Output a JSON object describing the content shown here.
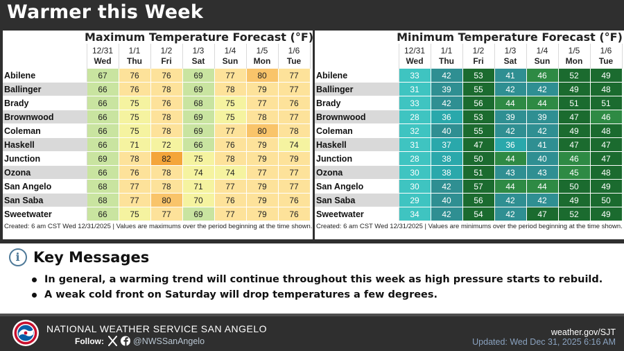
{
  "header": {
    "title": "Warmer this Week"
  },
  "columns": [
    {
      "date": "12/31",
      "day": "Wed"
    },
    {
      "date": "1/1",
      "day": "Thu"
    },
    {
      "date": "1/2",
      "day": "Fri"
    },
    {
      "date": "1/3",
      "day": "Sat"
    },
    {
      "date": "1/4",
      "day": "Sun"
    },
    {
      "date": "1/5",
      "day": "Mon"
    },
    {
      "date": "1/6",
      "day": "Tue"
    }
  ],
  "max_table": {
    "title": "Maximum Temperature Forecast (°F)",
    "footnote": "Created: 6 am CST Wed 12/31/2025  |  Values are maximums over the period beginning at the time shown.",
    "rows": [
      {
        "city": "Abilene",
        "values": [
          67,
          76,
          76,
          69,
          77,
          80,
          77
        ]
      },
      {
        "city": "Ballinger",
        "values": [
          66,
          76,
          78,
          69,
          78,
          79,
          77
        ]
      },
      {
        "city": "Brady",
        "values": [
          66,
          75,
          76,
          68,
          75,
          77,
          76
        ]
      },
      {
        "city": "Brownwood",
        "values": [
          66,
          75,
          78,
          69,
          75,
          78,
          77
        ]
      },
      {
        "city": "Coleman",
        "values": [
          66,
          75,
          78,
          69,
          77,
          80,
          78
        ]
      },
      {
        "city": "Haskell",
        "values": [
          66,
          71,
          72,
          66,
          76,
          79,
          74
        ]
      },
      {
        "city": "Junction",
        "values": [
          69,
          78,
          82,
          75,
          78,
          79,
          79
        ]
      },
      {
        "city": "Ozona",
        "values": [
          66,
          76,
          78,
          74,
          74,
          77,
          77
        ]
      },
      {
        "city": "San Angelo",
        "values": [
          68,
          77,
          78,
          71,
          77,
          79,
          77
        ]
      },
      {
        "city": "San Saba",
        "values": [
          68,
          77,
          80,
          70,
          76,
          79,
          76
        ]
      },
      {
        "city": "Sweetwater",
        "values": [
          66,
          75,
          77,
          69,
          77,
          79,
          76
        ]
      }
    ]
  },
  "min_table": {
    "title": "Minimum Temperature Forecast (°F)",
    "footnote": "Created: 6 am CST Wed 12/31/2025  |  Values are minimums over the period beginning at the time shown.",
    "rows": [
      {
        "city": "Abilene",
        "values": [
          33,
          42,
          53,
          41,
          46,
          52,
          49
        ]
      },
      {
        "city": "Ballinger",
        "values": [
          31,
          39,
          55,
          42,
          42,
          49,
          48
        ]
      },
      {
        "city": "Brady",
        "values": [
          33,
          42,
          56,
          44,
          44,
          51,
          51
        ]
      },
      {
        "city": "Brownwood",
        "values": [
          28,
          36,
          53,
          39,
          39,
          47,
          46
        ]
      },
      {
        "city": "Coleman",
        "values": [
          32,
          40,
          55,
          42,
          42,
          49,
          48
        ]
      },
      {
        "city": "Haskell",
        "values": [
          31,
          37,
          47,
          36,
          41,
          47,
          47
        ]
      },
      {
        "city": "Junction",
        "values": [
          28,
          38,
          50,
          44,
          40,
          46,
          47
        ]
      },
      {
        "city": "Ozona",
        "values": [
          30,
          38,
          51,
          43,
          43,
          45,
          48
        ]
      },
      {
        "city": "San Angelo",
        "values": [
          30,
          42,
          57,
          44,
          44,
          50,
          49
        ]
      },
      {
        "city": "San Saba",
        "values": [
          29,
          40,
          56,
          42,
          42,
          49,
          50
        ]
      },
      {
        "city": "Sweetwater",
        "values": [
          34,
          42,
          54,
          42,
          47,
          52,
          49
        ]
      }
    ]
  },
  "key_messages": {
    "icon": "info-icon",
    "title": "Key Messages",
    "items": [
      "In general, a warming trend will continue throughout this week as high pressure starts to rebuild.",
      "A weak cold front on Saturday will drop temperatures a few degrees."
    ]
  },
  "footer": {
    "office": "NATIONAL WEATHER SERVICE SAN ANGELO",
    "follow_label": "Follow:",
    "social_icons": [
      "x-icon",
      "facebook-icon"
    ],
    "handle": "@NWSSanAngelo",
    "website": "weather.gov/SJT",
    "updated": "Updated: Wed Dec 31, 2025 6:16 AM"
  },
  "colors": {
    "background_dark": "#2f2f2f",
    "max_scale": [
      "#c9e4a0",
      "#f5f3a0",
      "#fde29a",
      "#f9c46a",
      "#f4a53a"
    ],
    "min_scale": [
      "#3fc4c1",
      "#2f9ea8",
      "#46a85c",
      "#2e7f3e",
      "#1b5e2a"
    ],
    "updated_text": "#8aa2bf",
    "info_icon": "#4f7a99"
  }
}
